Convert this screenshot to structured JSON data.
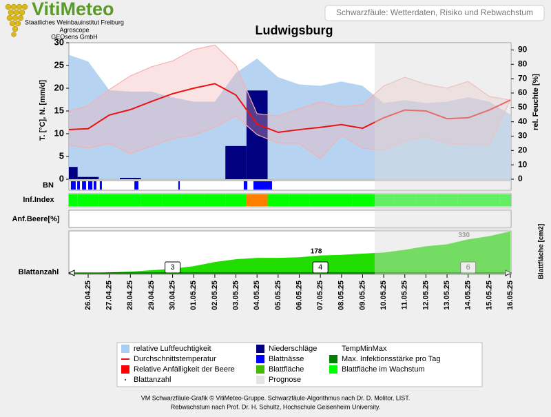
{
  "header": {
    "logo": "VitiMeteo",
    "institutes": [
      "Staatliches Weinbauinstitut Freiburg",
      "Agroscope",
      "GEOsens GmbH"
    ],
    "caption": "Schwarzfäule: Wetterdaten, Risiko und Rebwachstum"
  },
  "chart_data": {
    "type": "weather",
    "title": "Ludwigsburg",
    "categories": [
      null,
      "26.04.25",
      "27.04.25",
      "28.04.25",
      "29.04.25",
      "30.04.25",
      "01.05.25",
      "02.05.25",
      "03.05.25",
      "04.05.25",
      "05.05.25",
      "06.05.25",
      "07.05.25",
      "08.05.25",
      "09.05.25",
      "10.05.25",
      "11.05.25",
      "12.05.25",
      "13.05.25",
      "14.05.25",
      "15.05.25",
      "16.05.25"
    ],
    "ylabel": "T. [°C], N. [mm/d]",
    "y2label": "rel. Feuchte [%]",
    "ylim": [
      0,
      30
    ],
    "yticks": [
      0,
      5,
      10,
      15,
      20,
      25,
      30
    ],
    "y2lim": [
      0,
      95
    ],
    "y2ticks": [
      0,
      10,
      20,
      30,
      40,
      50,
      60,
      70,
      80,
      90
    ],
    "forecast_start": 14.57,
    "series": [
      {
        "color": "#a9cdf0",
        "axis": "y2",
        "values": [
          87,
          82,
          62,
          61,
          61,
          57,
          54,
          54,
          74,
          84,
          71,
          66,
          65,
          68,
          65,
          53,
          55,
          53,
          54,
          57,
          54,
          45
        ]
      },
      {
        "color": "#000080",
        "values": [
          2.7,
          0.5,
          0,
          0.3,
          0,
          0,
          0,
          0,
          7.3,
          19.5,
          0,
          0,
          0,
          0,
          0,
          0,
          0,
          0,
          0,
          0,
          0,
          0
        ]
      },
      {
        "color": "#f5b0b0",
        "values": [
          14.8,
          16.2,
          19.7,
          22.7,
          24.7,
          26,
          28.5,
          29.5,
          25,
          14.4,
          13.9,
          15.5,
          17,
          15.9,
          16.4,
          20.5,
          22.4,
          20.9,
          20,
          21.5,
          18.2,
          17.4
        ]
      },
      {
        "color": "#f5b0b0",
        "values": [
          7.6,
          6.8,
          7.9,
          5.6,
          7.3,
          8.9,
          9.7,
          11.4,
          13.9,
          9.8,
          7.9,
          7.9,
          4.5,
          9.7,
          6.8,
          6.4,
          8.3,
          9.4,
          7.9,
          7.6,
          7.6,
          17.4
        ]
      },
      {
        "color": "#ee1111",
        "values": [
          10.9,
          11.1,
          14.1,
          15.3,
          17.1,
          18.8,
          20,
          21,
          18.5,
          12.1,
          10.3,
          10.9,
          11.4,
          12,
          11.2,
          13.5,
          15.2,
          15,
          13.3,
          13.5,
          15.2,
          17.4
        ]
      }
    ],
    "bn": {
      "label": "BN",
      "color": "#0000ff",
      "intervals": [
        [
          0.18,
          0.41
        ],
        [
          0.48,
          0.61
        ],
        [
          0.71,
          0.9
        ],
        [
          1.0,
          1.2
        ],
        [
          1.26,
          1.39
        ],
        [
          1.55,
          1.65
        ],
        [
          3.19,
          3.38
        ],
        [
          5.27,
          5.34
        ],
        [
          8.37,
          8.54
        ],
        [
          8.83,
          9.71
        ]
      ]
    },
    "inf_index": {
      "label": "Inf.Index",
      "colors": [
        "#00ff00",
        "#ff8000"
      ],
      "values": [
        0,
        0,
        0,
        0,
        0,
        0,
        0,
        0,
        0,
        1,
        0,
        0,
        0,
        0,
        0,
        0,
        0,
        0,
        0,
        0,
        0,
        0
      ]
    },
    "beere": {
      "label": "Anf.Beere[%]"
    },
    "leaf_area": {
      "label": "Blattfläche [cm2]",
      "color": "#22dd00",
      "ylim": [
        0,
        410
      ],
      "values": [
        13,
        13,
        19,
        26,
        39,
        52,
        77,
        116,
        142,
        155,
        155,
        161,
        178,
        184,
        195,
        206,
        232,
        265,
        284,
        330,
        360,
        406
      ]
    },
    "leaf_count": {
      "label": "Blattanzahl",
      "at": [
        5,
        12,
        19
      ],
      "values": [
        3,
        4,
        6
      ]
    },
    "legend": [
      [
        {
          "label": "relative Luftfeuchtigkeit",
          "color": "#a9cdf0",
          "shape": "square"
        },
        {
          "label": "Durchschnittstemperatur",
          "color": "#ee1111",
          "shape": "line"
        },
        {
          "label": "Relative Anfälligkeit der Beere",
          "color": "#ff0000",
          "shape": "square"
        },
        {
          "label": "Blattanzahl",
          "color": "#000000",
          "shape": "dot"
        }
      ],
      [
        {
          "label": "Niederschläge",
          "color": "#000080",
          "shape": "square"
        },
        {
          "label": "Blattnässe",
          "color": "#0000ff",
          "shape": "square"
        },
        {
          "label": "Blattfläche",
          "color": "#44bb00",
          "shape": "square"
        },
        {
          "label": "Prognose",
          "color": "#e4e4e4",
          "shape": "square"
        }
      ],
      [
        {
          "label": "TempMinMax",
          "color": "#f5b0b0",
          "shape": "none"
        },
        {
          "label": "Max. Infektionsstärke pro Tag",
          "color": "#008000",
          "shape": "square"
        },
        {
          "label": "Blattfläche im Wachstum",
          "color": "#00ff00",
          "shape": "square"
        }
      ]
    ]
  },
  "footer": [
    "VM Schwarzfäule-Grafik © VitiMeteo-Gruppe. Schwarzfäule-Algorithmus nach Dr. D. Molitor, LIST.",
    "Rebwachstum nach Prof. Dr. H. Schultz, Hochschule Geisenheim University."
  ]
}
